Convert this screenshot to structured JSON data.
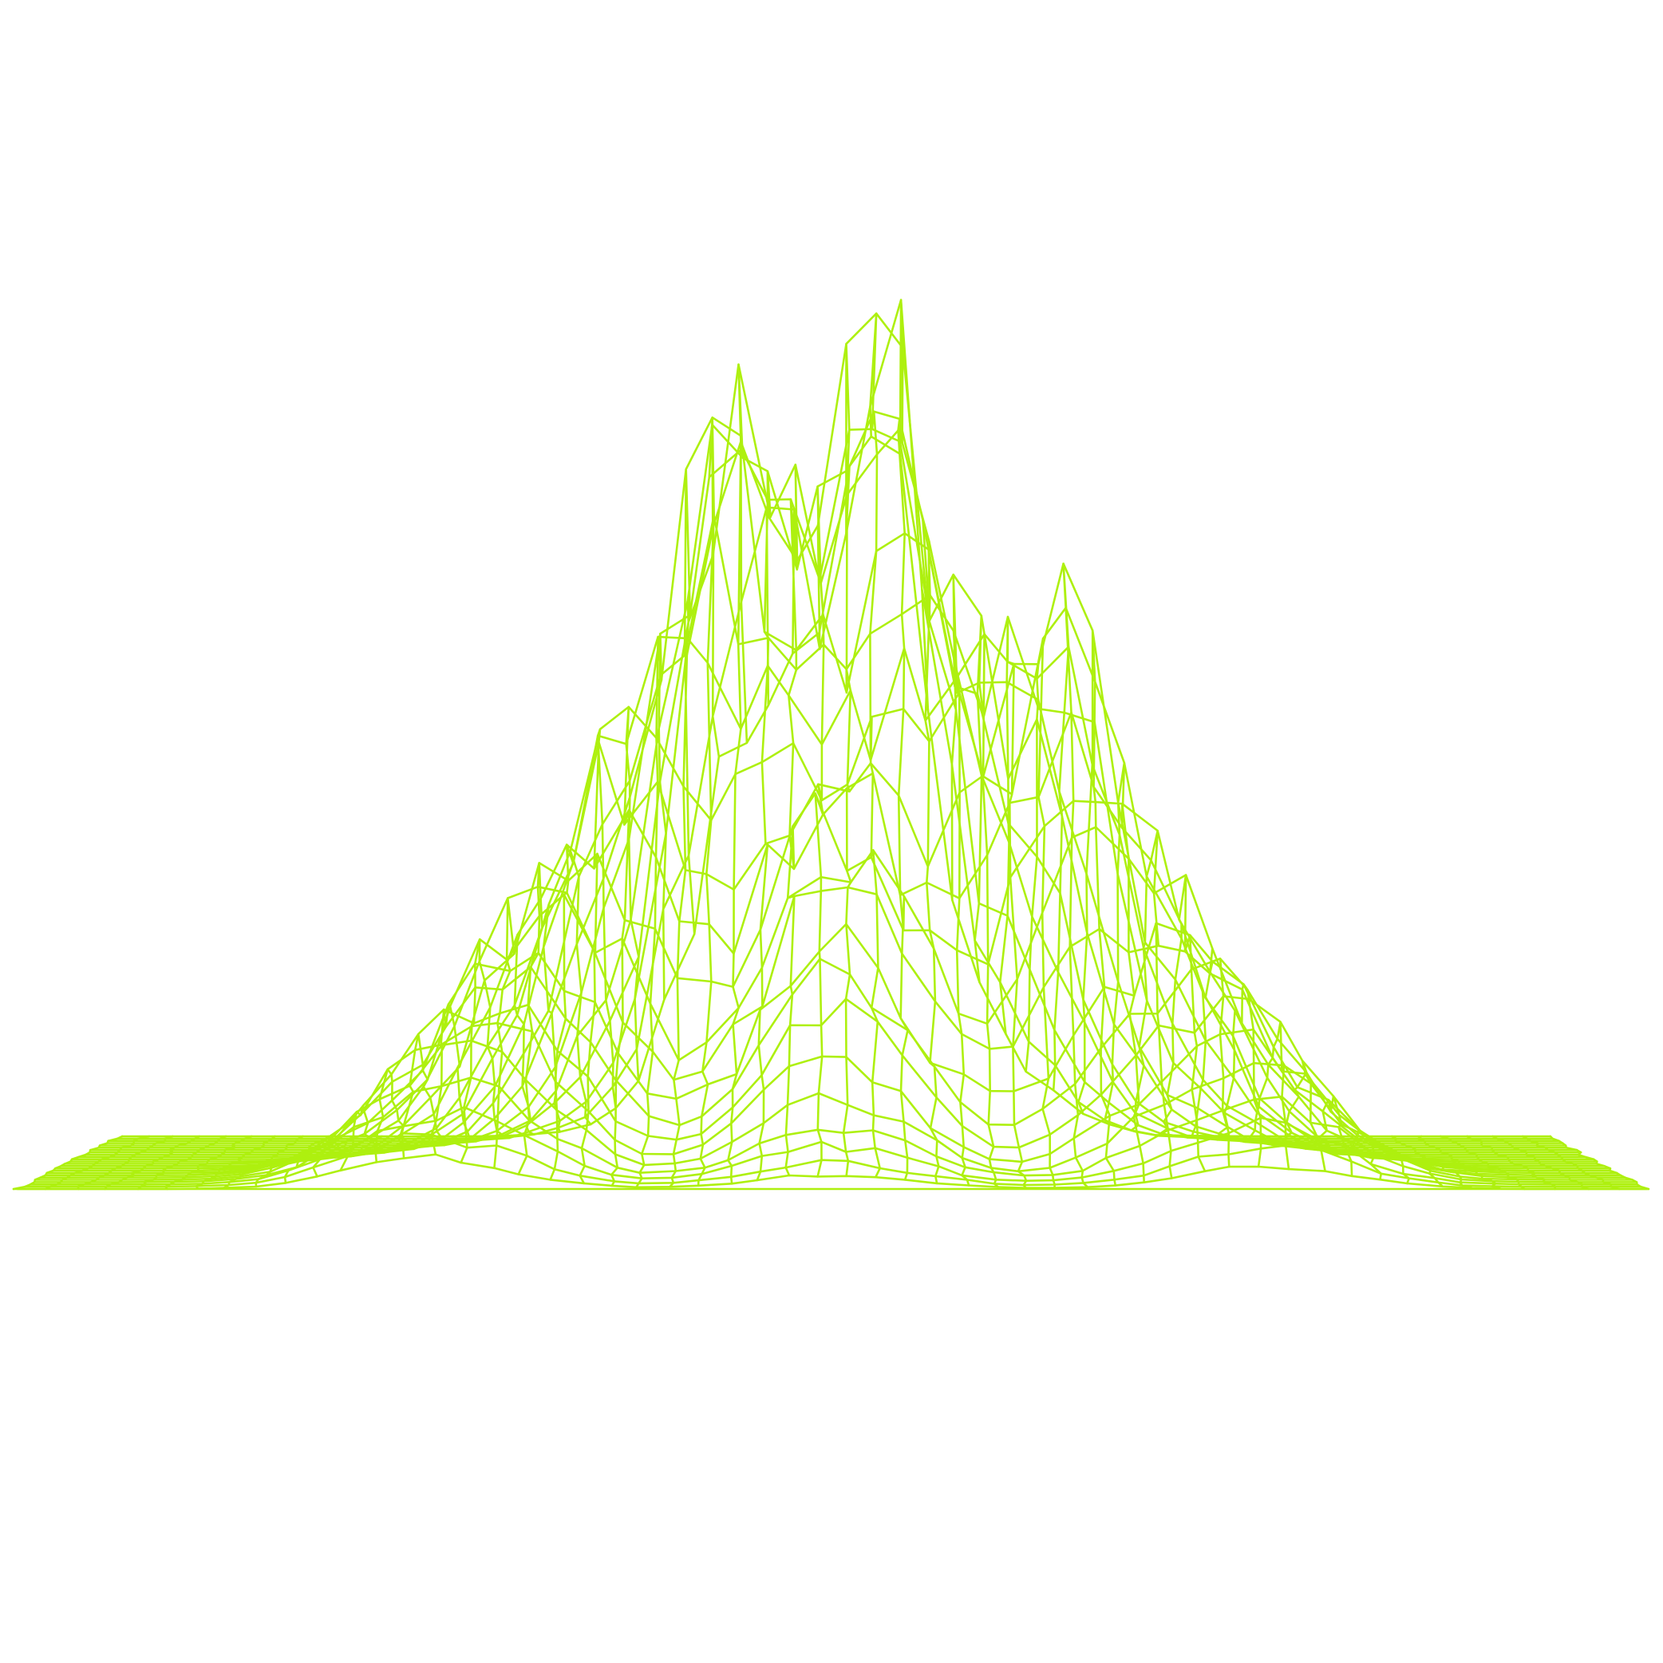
{
  "figure": {
    "kind": "wireframe-surface",
    "colors": {
      "background": "#ffffff",
      "line": "#aef00f"
    },
    "surface": {
      "rows": 24,
      "cols": 56,
      "peaks": [
        {
          "u": 0.535,
          "v": 0.94,
          "height": 1.0,
          "spread_u": 0.03,
          "spread_v": 0.16
        },
        {
          "u": 0.455,
          "v": 0.88,
          "height": 0.78,
          "spread_u": 0.035,
          "spread_v": 0.16
        },
        {
          "u": 0.405,
          "v": 0.78,
          "height": 0.6,
          "spread_u": 0.03,
          "spread_v": 0.14
        },
        {
          "u": 0.35,
          "v": 0.62,
          "height": 0.5,
          "spread_u": 0.035,
          "spread_v": 0.14
        },
        {
          "u": 0.6,
          "v": 0.72,
          "height": 0.62,
          "spread_u": 0.04,
          "spread_v": 0.16
        },
        {
          "u": 0.66,
          "v": 0.6,
          "height": 0.6,
          "spread_u": 0.03,
          "spread_v": 0.14
        },
        {
          "u": 0.72,
          "v": 0.45,
          "height": 0.38,
          "spread_u": 0.04,
          "spread_v": 0.16
        },
        {
          "u": 0.3,
          "v": 0.4,
          "height": 0.34,
          "spread_u": 0.04,
          "spread_v": 0.15
        },
        {
          "u": 0.24,
          "v": 0.22,
          "height": 0.18,
          "spread_u": 0.045,
          "spread_v": 0.14
        },
        {
          "u": 0.5,
          "v": 0.5,
          "height": 0.45,
          "spread_u": 0.05,
          "spread_v": 0.2
        },
        {
          "u": 0.78,
          "v": 0.25,
          "height": 0.2,
          "spread_u": 0.045,
          "spread_v": 0.14
        }
      ]
    }
  }
}
